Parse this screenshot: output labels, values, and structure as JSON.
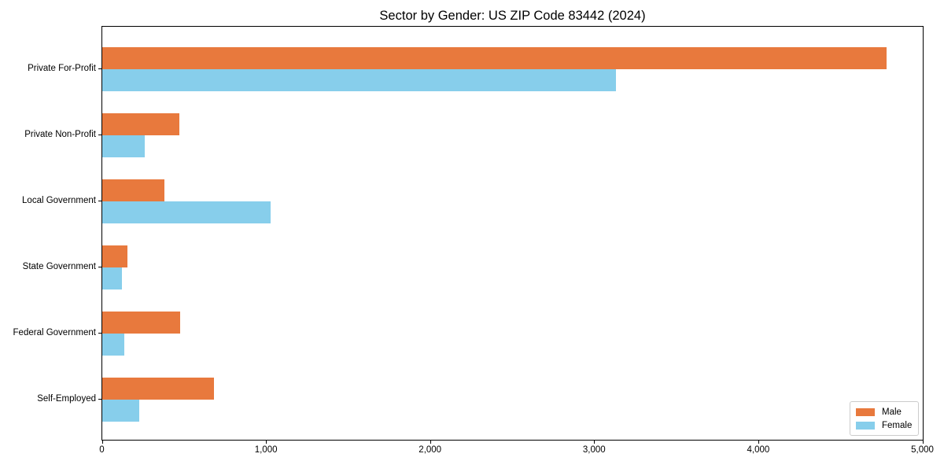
{
  "chart_data": {
    "type": "bar",
    "orientation": "horizontal",
    "title": "Sector by Gender: US ZIP Code 83442 (2024)",
    "categories": [
      "Private For-Profit",
      "Private Non-Profit",
      "Local Government",
      "State Government",
      "Federal Government",
      "Self-Employed"
    ],
    "series": [
      {
        "name": "Male",
        "color": "#E8793D",
        "values": [
          4780,
          470,
          380,
          155,
          475,
          680
        ]
      },
      {
        "name": "Female",
        "color": "#87CEEB",
        "values": [
          3130,
          260,
          1025,
          120,
          135,
          225
        ]
      }
    ],
    "xlabel": "",
    "ylabel": "",
    "xlim": [
      0,
      5000
    ],
    "xticks": [
      0,
      1000,
      2000,
      3000,
      4000,
      5000
    ],
    "xtick_labels": [
      "0",
      "1,000",
      "2,000",
      "3,000",
      "4,000",
      "5,000"
    ],
    "grid": false,
    "legend": {
      "position": "lower-right",
      "entries": [
        "Male",
        "Female"
      ]
    }
  },
  "colors": {
    "axis": "#000000",
    "legend_border": "#cccccc",
    "background": "#ffffff"
  }
}
